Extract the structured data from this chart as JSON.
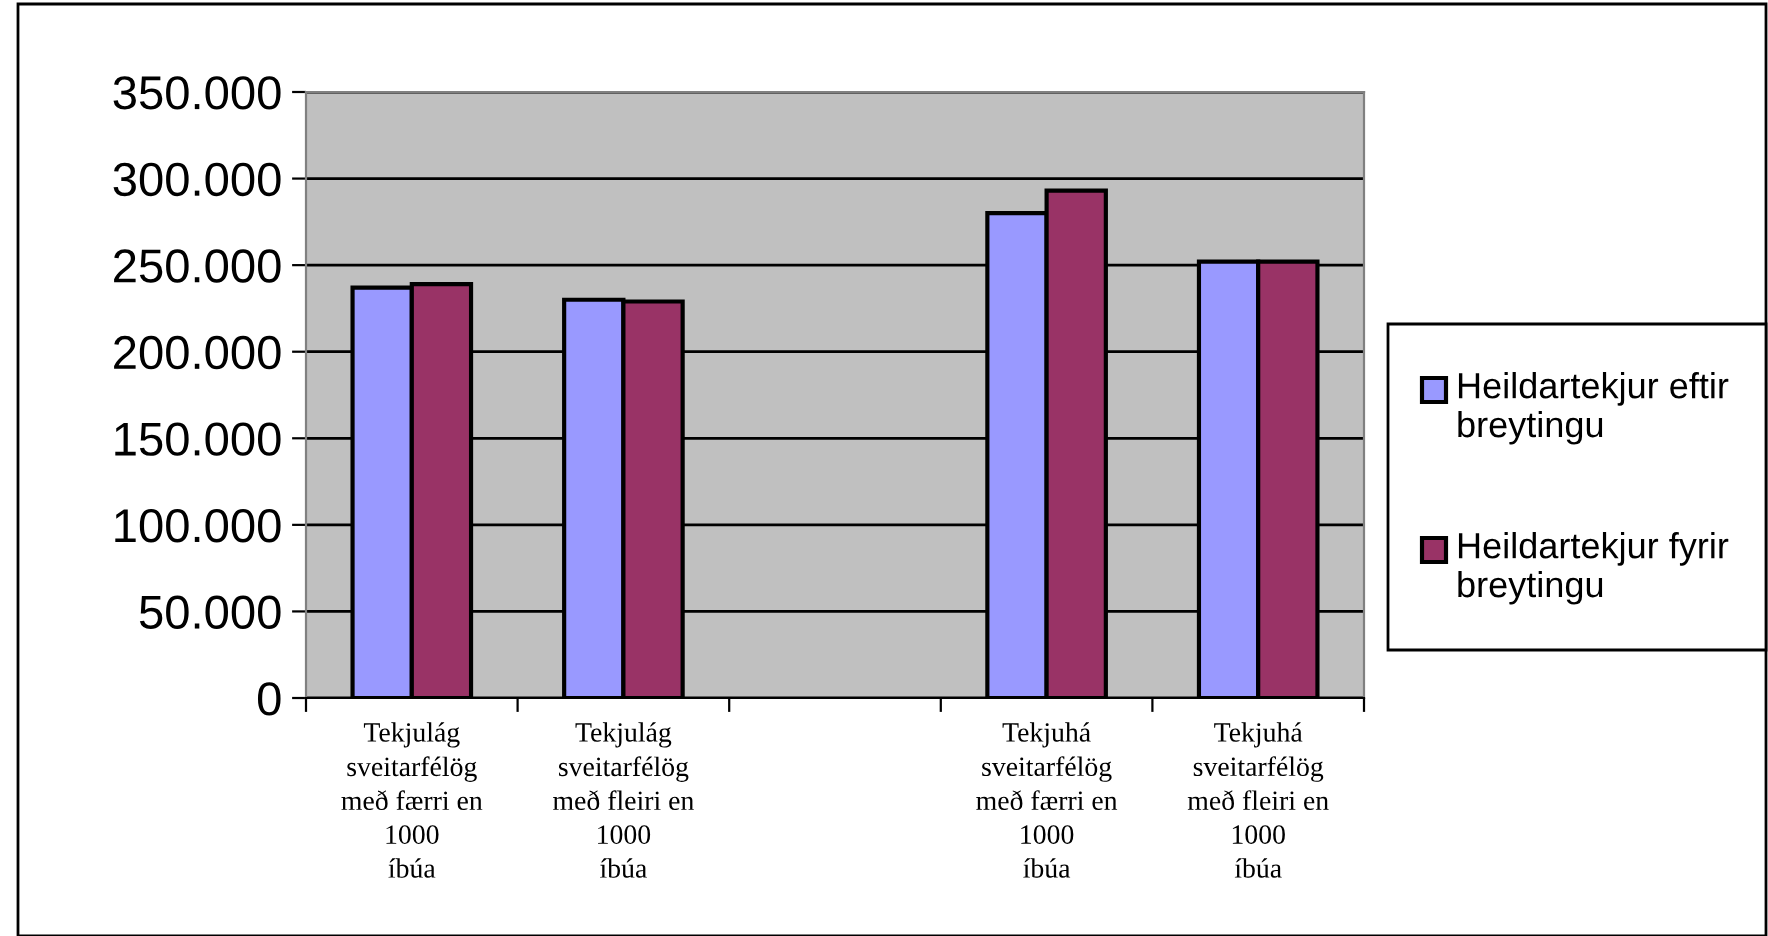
{
  "chart_data": {
    "type": "bar",
    "categories": [
      "Tekjulág\nsveitarfélög\nmeð færri en\n1000\níbúa",
      "Tekjulág\nsveitarfélög\nmeð fleiri en\n1000\níbúa",
      null,
      "Tekjuhá\nsveitarfélög\nmeð færri en\n1000\níbúa",
      "Tekjuhá\nsveitarfélög\nmeð fleiri en\n1000\níbúa"
    ],
    "series": [
      {
        "name": "Heildartekjur eftir breytingu",
        "color": "#9999ff",
        "values": [
          237000,
          230000,
          null,
          280000,
          252000
        ]
      },
      {
        "name": "Heildartekjur fyrir breytingu",
        "color": "#993366",
        "values": [
          239000,
          229000,
          null,
          293000,
          252000
        ]
      }
    ],
    "ylim": [
      0,
      350000
    ],
    "yticks": [
      {
        "value": 0,
        "label": "0"
      },
      {
        "value": 50000,
        "label": "50.000"
      },
      {
        "value": 100000,
        "label": "100.000"
      },
      {
        "value": 150000,
        "label": "150.000"
      },
      {
        "value": 200000,
        "label": "200.000"
      },
      {
        "value": 250000,
        "label": "250.000"
      },
      {
        "value": 300000,
        "label": "300.000"
      },
      {
        "value": 350000,
        "label": "350.000"
      }
    ],
    "grid": "y",
    "legend": "right"
  }
}
